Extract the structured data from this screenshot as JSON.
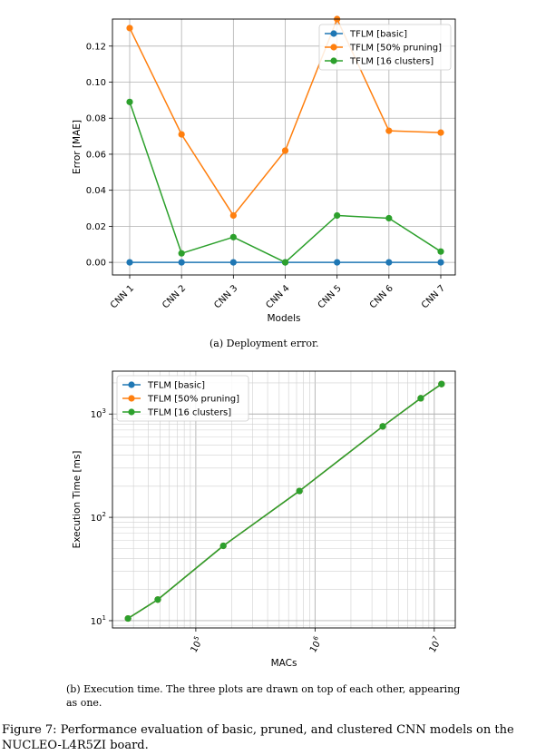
{
  "chart_data": [
    {
      "type": "line",
      "title": "",
      "xlabel": "Models",
      "ylabel": "Error [MAE]",
      "categories": [
        "CNN 1",
        "CNN 2",
        "CNN 3",
        "CNN 4",
        "CNN 5",
        "CNN 6",
        "CNN 7"
      ],
      "ylim": [
        -0.007,
        0.135
      ],
      "yticks": [
        0.0,
        0.02,
        0.04,
        0.06,
        0.08,
        0.1,
        0.12
      ],
      "ytick_labels": [
        "0.00",
        "0.02",
        "0.04",
        "0.06",
        "0.08",
        "0.10",
        "0.12"
      ],
      "grid": true,
      "legend_position": "top-right",
      "series": [
        {
          "name": "TFLM [basic]",
          "color": "#1f77b4",
          "values": [
            0.0,
            0.0,
            0.0,
            0.0,
            0.0,
            0.0,
            0.0
          ]
        },
        {
          "name": "TFLM [50% pruning]",
          "color": "#ff7f0e",
          "values": [
            0.13,
            0.071,
            0.026,
            0.062,
            0.135,
            0.073,
            0.072
          ]
        },
        {
          "name": "TFLM [16 clusters]",
          "color": "#2ca02c",
          "values": [
            0.089,
            0.005,
            0.014,
            0.0,
            0.026,
            0.0245,
            0.006
          ]
        }
      ]
    },
    {
      "type": "line",
      "title": "",
      "xlabel": "MACs",
      "ylabel": "Execution Time [ms]",
      "xscale": "log",
      "yscale": "log",
      "xlim": [
        20000,
        15000000
      ],
      "ylim": [
        8.5,
        2600
      ],
      "xticks": [
        100000,
        1000000,
        10000000
      ],
      "xtick_labels": [
        {
          "base": "10",
          "exp": "5"
        },
        {
          "base": "10",
          "exp": "6"
        },
        {
          "base": "10",
          "exp": "7"
        }
      ],
      "yticks": [
        10,
        100,
        1000
      ],
      "ytick_labels": [
        {
          "base": "10",
          "exp": "1"
        },
        {
          "base": "10",
          "exp": "2"
        },
        {
          "base": "10",
          "exp": "3"
        }
      ],
      "grid": true,
      "legend_position": "top-left",
      "series": [
        {
          "name": "TFLM [basic]",
          "color": "#1f77b4",
          "x": [
            27000,
            48000,
            170000,
            740000,
            3700000,
            7700000,
            11500000
          ],
          "y": [
            10.5,
            16,
            53,
            180,
            760,
            1420,
            1950
          ]
        },
        {
          "name": "TFLM [50% pruning]",
          "color": "#ff7f0e",
          "x": [
            27000,
            48000,
            170000,
            740000,
            3700000,
            7700000,
            11500000
          ],
          "y": [
            10.5,
            16,
            53,
            180,
            760,
            1420,
            1950
          ]
        },
        {
          "name": "TFLM [16 clusters]",
          "color": "#2ca02c",
          "x": [
            27000,
            48000,
            170000,
            740000,
            3700000,
            7700000,
            11500000
          ],
          "y": [
            10.5,
            16,
            53,
            180,
            760,
            1420,
            1950
          ]
        }
      ]
    }
  ],
  "captions": {
    "sub_a": "(a) Deployment error.",
    "sub_b": "(b) Execution time. The three plots are drawn on top of each other, appearing as one.",
    "figure": "Figure 7: Performance evaluation of basic, pruned, and clustered CNN models on the NUCLEO-L4R5ZI board."
  }
}
